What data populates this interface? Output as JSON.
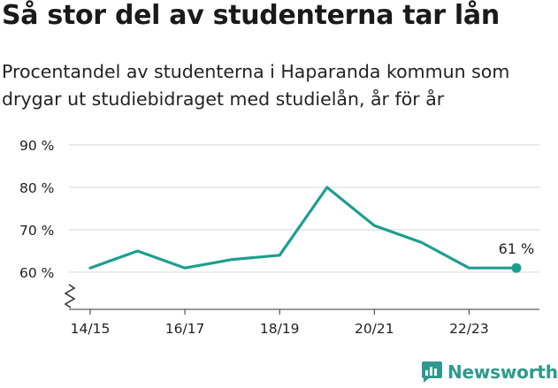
{
  "header": {
    "title": "Så stor del av studenterna tar lån",
    "subtitle": "Procentandel av studenterna i Haparanda kommun som drygar ut studiebidraget med studielån, år för år"
  },
  "chart_data": {
    "type": "line",
    "x": [
      "14/15",
      "15/16",
      "16/17",
      "17/18",
      "18/19",
      "19/20",
      "20/21",
      "21/22",
      "22/23",
      "23/24"
    ],
    "xticks": [
      "14/15",
      "16/17",
      "18/19",
      "20/21",
      "22/23"
    ],
    "values": [
      61,
      65,
      61,
      63,
      64,
      80,
      71,
      67,
      61,
      61
    ],
    "ylim": [
      60,
      90
    ],
    "yticks": [
      60,
      70,
      80,
      90
    ],
    "ytick_labels": [
      "60 %",
      "70 %",
      "80 %",
      "90 %"
    ],
    "y_axis_break": true,
    "end_label": "61 %",
    "grid": true,
    "color": "#1e9e8f"
  },
  "brand": {
    "name": "Newsworthy",
    "color": "#2e9a8d"
  }
}
